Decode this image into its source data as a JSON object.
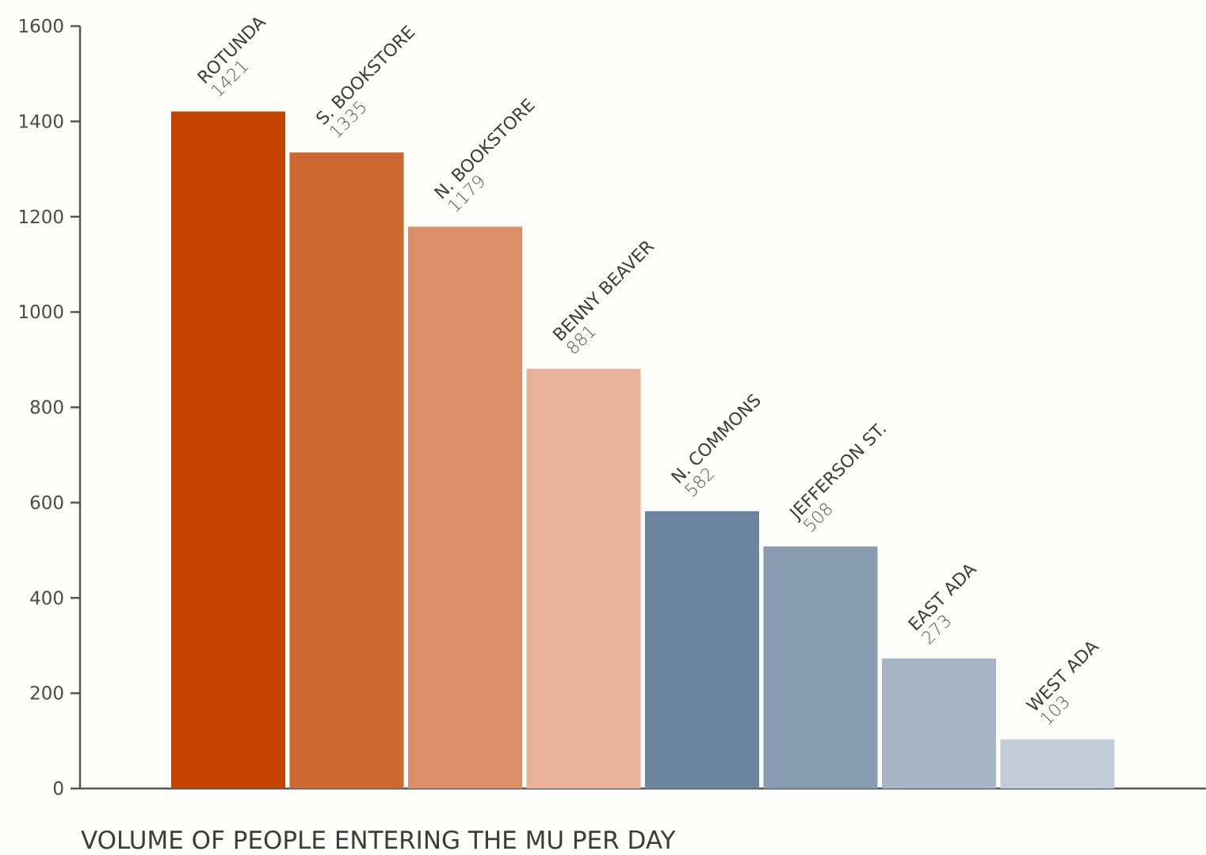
{
  "chart_data": {
    "type": "bar",
    "title": "VOLUME OF PEOPLE ENTERING THE MU PER DAY",
    "xlabel": "",
    "ylabel": "",
    "ylim": [
      0,
      1600
    ],
    "yticks": [
      0,
      200,
      400,
      600,
      800,
      1000,
      1200,
      1400,
      1600
    ],
    "categories": [
      "ROTUNDA",
      "S. BOOKSTORE",
      "N. BOOKSTORE",
      "BENNY BEAVER",
      "N. COMMONS",
      "JEFFERSON ST.",
      "EAST ADA",
      "WEST ADA"
    ],
    "values": [
      1421,
      1335,
      1179,
      881,
      582,
      508,
      273,
      103
    ],
    "colors": [
      "#c24400",
      "#cd6832",
      "#db8e67",
      "#e7b297",
      "#6b859e",
      "#8a9cb1",
      "#a7b4c4",
      "#c3cdd8"
    ],
    "axis_color": "#555555",
    "grid": false,
    "legend": "none"
  }
}
